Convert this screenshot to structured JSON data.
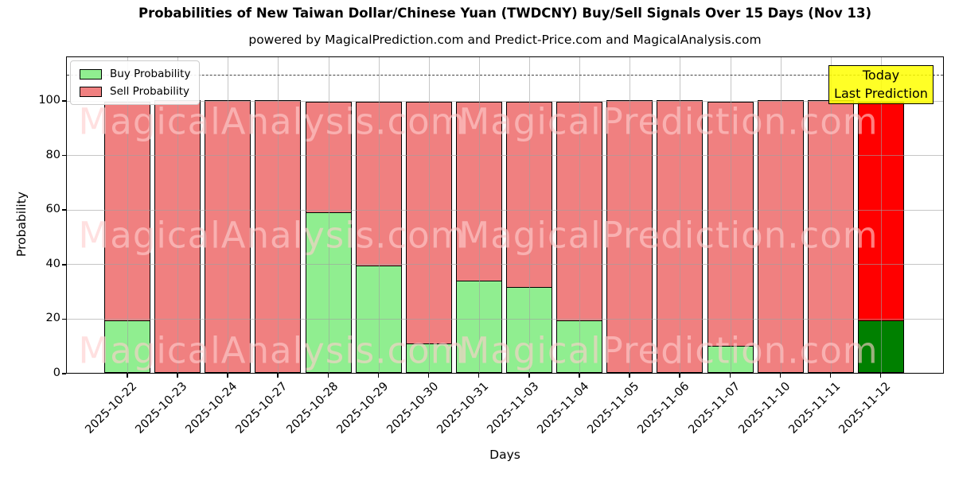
{
  "chart_data": {
    "type": "bar",
    "stacked": true,
    "title": "Probabilities of New Taiwan Dollar/Chinese Yuan (TWDCNY) Buy/Sell Signals Over 15 Days (Nov 13)",
    "subtitle": "powered by MagicalPrediction.com and Predict-Price.com and MagicalAnalysis.com",
    "xlabel": "Days",
    "ylabel": "Probability",
    "categories": [
      "2025-10-22",
      "2025-10-23",
      "2025-10-24",
      "2025-10-27",
      "2025-10-28",
      "2025-10-29",
      "2025-10-30",
      "2025-10-31",
      "2025-11-03",
      "2025-11-04",
      "2025-11-05",
      "2025-11-06",
      "2025-11-07",
      "2025-11-10",
      "2025-11-11",
      "2025-11-12"
    ],
    "series": [
      {
        "name": "Buy Probability",
        "color": "#90ee90",
        "values": [
          19.5,
          0,
          0,
          0,
          59,
          39.5,
          11,
          34,
          31.5,
          19.5,
          0,
          0,
          10,
          0,
          0,
          19.5
        ]
      },
      {
        "name": "Sell Probability",
        "color": "#f08080",
        "values": [
          80.5,
          100,
          100,
          100,
          41,
          60.5,
          89,
          66,
          68.5,
          80.5,
          100,
          100,
          90,
          100,
          100,
          80.5
        ]
      }
    ],
    "today_bar": {
      "index": 15,
      "buy_color": "#008000",
      "sell_color": "#ff0000"
    },
    "yticks": [
      0,
      20,
      40,
      60,
      80,
      100
    ],
    "ylim": [
      0,
      116
    ],
    "grid": true,
    "dashed_line_y": 110,
    "bar_edge_color": "#000000",
    "legend_position": "upper left",
    "annotation_box": {
      "lines": [
        "Today",
        "Last Prediction"
      ],
      "bg_color": "#ffff00",
      "position": "upper right"
    },
    "watermarks": [
      "MagicalAnalysis.com",
      "MagicalPrediction.com"
    ]
  }
}
